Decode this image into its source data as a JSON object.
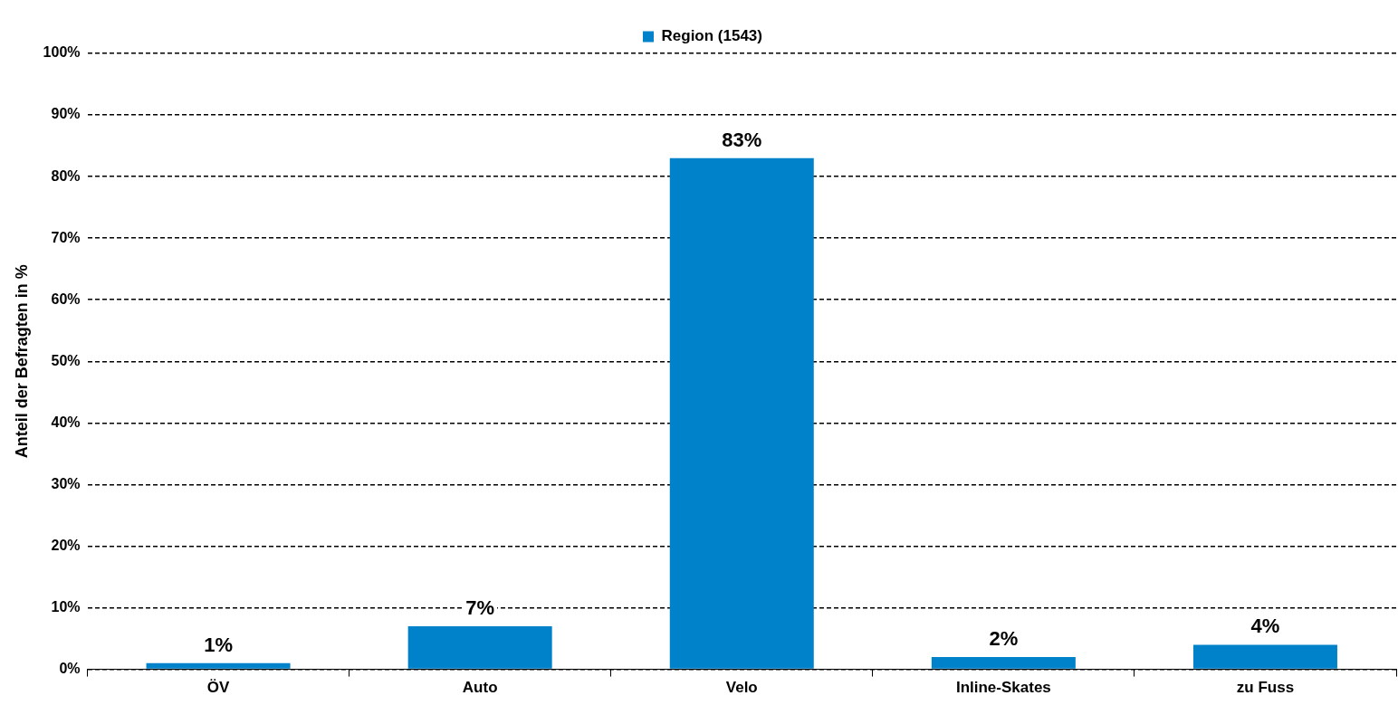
{
  "chart_data": {
    "type": "bar",
    "ylabel": "Anteil der Befragten in %",
    "categories": [
      "ÖV",
      "Auto",
      "Velo",
      "Inline-Skates",
      "zu Fuss"
    ],
    "series": [
      {
        "name": "Region (1543)",
        "color": "#0082ca",
        "values": [
          1,
          7,
          83,
          2,
          4
        ],
        "value_labels": [
          "1%",
          "7%",
          "83%",
          "2%",
          "4%"
        ]
      }
    ],
    "ylim": [
      0,
      100
    ],
    "yticks": [
      {
        "value": 0,
        "label": "0%"
      },
      {
        "value": 10,
        "label": "10%"
      },
      {
        "value": 20,
        "label": "20%"
      },
      {
        "value": 30,
        "label": "30%"
      },
      {
        "value": 40,
        "label": "40%"
      },
      {
        "value": 50,
        "label": "50%"
      },
      {
        "value": 60,
        "label": "60%"
      },
      {
        "value": 70,
        "label": "70%"
      },
      {
        "value": 80,
        "label": "80%"
      },
      {
        "value": 90,
        "label": "90%"
      },
      {
        "value": 100,
        "label": "100%"
      }
    ],
    "grid": "y",
    "legend": "top"
  }
}
